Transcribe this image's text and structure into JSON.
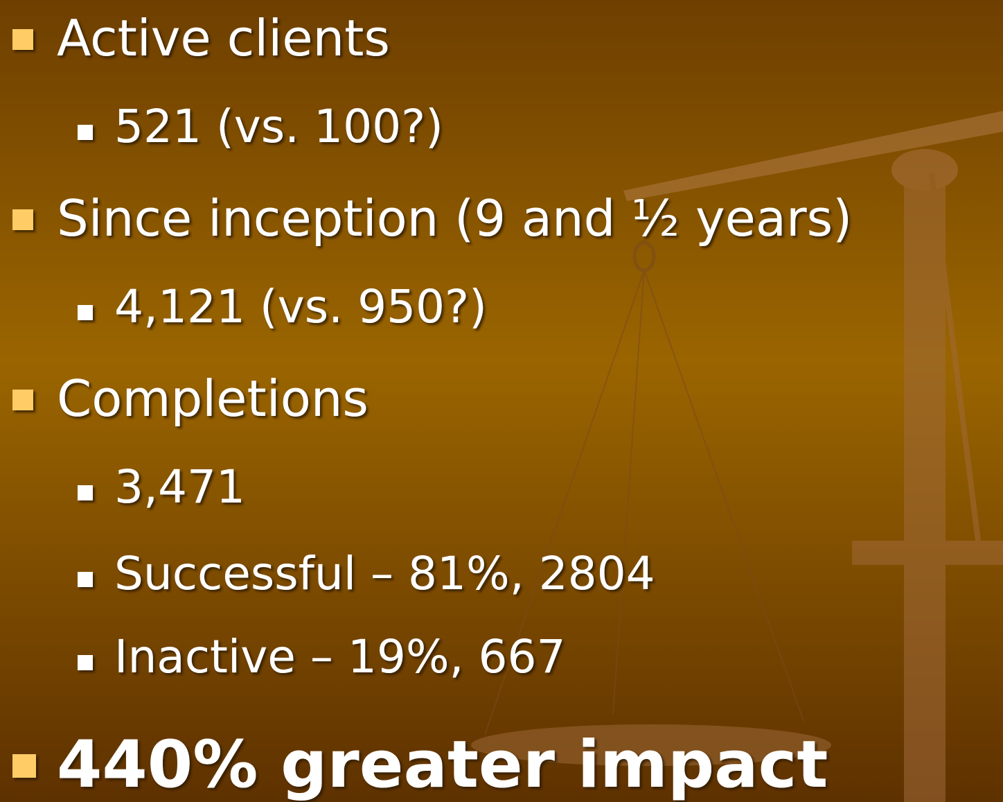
{
  "bullets": [
    {
      "text": "Active clients",
      "items": [
        "521 (vs. 100?)"
      ]
    },
    {
      "text": "Since inception (9 and ½ years)",
      "items": [
        "4,121 (vs. 950?)"
      ]
    },
    {
      "text": "Completions",
      "items": [
        "3,471",
        "Successful – 81%, 2804",
        "Inactive – 19%, 667"
      ]
    },
    {
      "text": "440% greater impact",
      "items": []
    }
  ]
}
